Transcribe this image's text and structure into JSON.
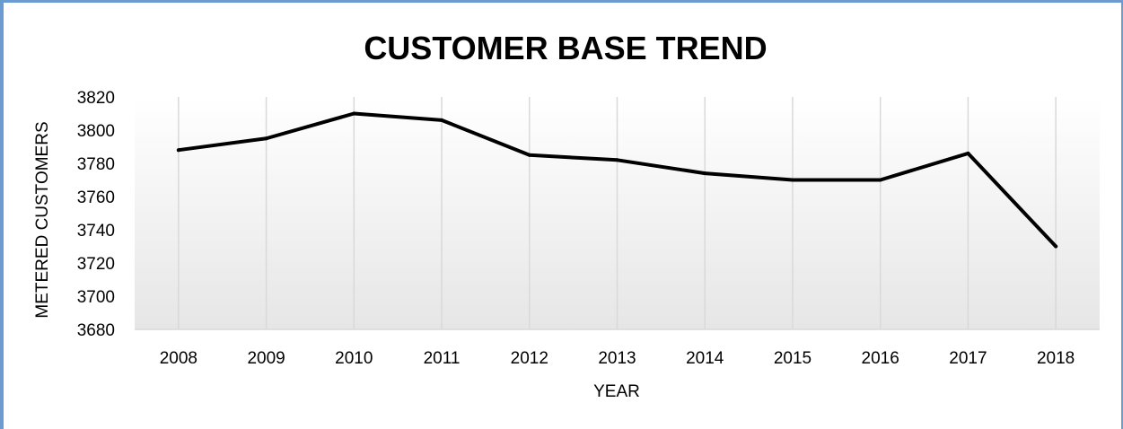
{
  "chart_data": {
    "type": "line",
    "title": "CUSTOMER BASE TREND",
    "xlabel": "YEAR",
    "ylabel": "METERED CUSTOMERS",
    "categories": [
      "2008",
      "2009",
      "2010",
      "2011",
      "2012",
      "2013",
      "2014",
      "2015",
      "2016",
      "2017",
      "2018"
    ],
    "series": [
      {
        "values": [
          3788,
          3795,
          3810,
          3806,
          3785,
          3782,
          3774,
          3770,
          3770,
          3786,
          3730
        ]
      }
    ],
    "ylim": [
      3680,
      3820
    ],
    "yticks": [
      "3680",
      "3700",
      "3720",
      "3740",
      "3760",
      "3780",
      "3800",
      "3820"
    ],
    "grid": "vertical",
    "legend": "none",
    "colors": {
      "line": "#000000",
      "grid": "#d9d9d9",
      "frame": "#6b9bd1",
      "plot_bg_top": "#ffffff",
      "plot_bg_bottom": "#e6e6e6"
    }
  }
}
